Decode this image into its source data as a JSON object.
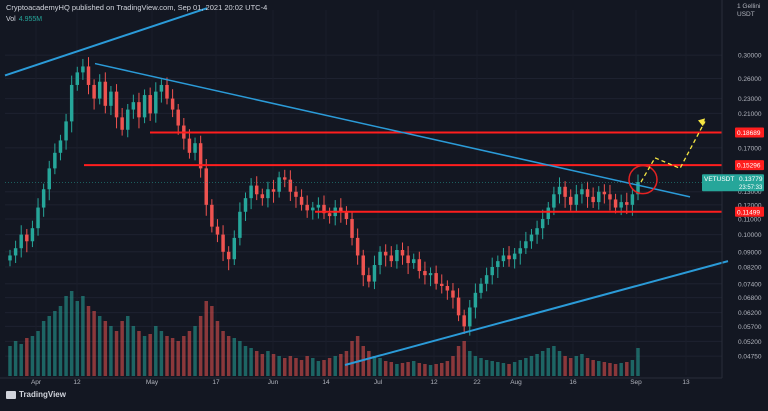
{
  "header": {
    "publisher_line": "CryptoacademyHQ published on TradingView.com, Sep 01, 2021 20:02 UTC-4",
    "volume_label": "Vol",
    "volume_value": "4.955M",
    "unit_lines": [
      "1 Gellini",
      "USDT"
    ]
  },
  "footer": {
    "brand": "TradingView"
  },
  "colors": {
    "background": "#131722",
    "up_candle": "#26a69a",
    "down_candle": "#ef5350",
    "resistance_line": "#ff1e1e",
    "trend_line": "#2b9bd8",
    "projection": "#f5e642",
    "circle": "#e52222",
    "current_price_tag": "#26a69a"
  },
  "chart_data": {
    "type": "candlestick",
    "symbol": "VETUSDT",
    "scale": "log",
    "y_ticks": [
      "0.30000",
      "0.26000",
      "0.23000",
      "0.21000",
      "0.17000",
      "0.13000",
      "0.12000",
      "0.11000",
      "0.10000",
      "0.09000",
      "0.08200",
      "0.07400",
      "0.06800",
      "0.06200",
      "0.05700",
      "0.05200",
      "0.04750"
    ],
    "x_ticks": [
      "Apr",
      "12",
      "May",
      "17",
      "Jun",
      "14",
      "Jul",
      "12",
      "22",
      "Aug",
      "16",
      "Sep",
      "13"
    ],
    "ylim": [
      0.045,
      0.35
    ],
    "price_tags": [
      {
        "value": 0.18689,
        "label": "0.18689",
        "kind": "resistance"
      },
      {
        "value": 0.15296,
        "label": "0.15296",
        "kind": "resistance"
      },
      {
        "value": 0.11499,
        "label": "0.11499",
        "kind": "support"
      },
      {
        "value": 0.13779,
        "label": "0.13779",
        "kind": "current",
        "symbol": "VETUSDT",
        "countdown": "23:57:33"
      }
    ],
    "closes": [
      0.088,
      0.092,
      0.1,
      0.096,
      0.104,
      0.118,
      0.132,
      0.15,
      0.165,
      0.178,
      0.2,
      0.25,
      0.27,
      0.28,
      0.25,
      0.23,
      0.255,
      0.22,
      0.24,
      0.205,
      0.19,
      0.215,
      0.225,
      0.205,
      0.235,
      0.21,
      0.24,
      0.25,
      0.23,
      0.215,
      0.195,
      0.18,
      0.165,
      0.175,
      0.15,
      0.12,
      0.105,
      0.1,
      0.09,
      0.086,
      0.098,
      0.115,
      0.125,
      0.135,
      0.128,
      0.125,
      0.132,
      0.13,
      0.142,
      0.14,
      0.13,
      0.126,
      0.12,
      0.116,
      0.118,
      0.12,
      0.114,
      0.112,
      0.118,
      0.115,
      0.11,
      0.098,
      0.088,
      0.078,
      0.075,
      0.083,
      0.09,
      0.088,
      0.085,
      0.091,
      0.088,
      0.084,
      0.086,
      0.08,
      0.078,
      0.079,
      0.074,
      0.073,
      0.071,
      0.068,
      0.061,
      0.057,
      0.064,
      0.07,
      0.074,
      0.078,
      0.082,
      0.085,
      0.088,
      0.086,
      0.089,
      0.092,
      0.096,
      0.1,
      0.104,
      0.11,
      0.118,
      0.128,
      0.134,
      0.126,
      0.12,
      0.128,
      0.132,
      0.126,
      0.122,
      0.13,
      0.128,
      0.124,
      0.118,
      0.122,
      0.12,
      0.128,
      0.138
    ],
    "volumes": [
      0.3,
      0.35,
      0.32,
      0.38,
      0.4,
      0.45,
      0.55,
      0.6,
      0.65,
      0.7,
      0.8,
      0.85,
      0.75,
      0.8,
      0.7,
      0.65,
      0.6,
      0.55,
      0.5,
      0.45,
      0.55,
      0.6,
      0.5,
      0.45,
      0.4,
      0.42,
      0.5,
      0.45,
      0.4,
      0.38,
      0.35,
      0.4,
      0.45,
      0.5,
      0.6,
      0.75,
      0.7,
      0.55,
      0.45,
      0.4,
      0.38,
      0.35,
      0.3,
      0.28,
      0.25,
      0.22,
      0.25,
      0.22,
      0.2,
      0.18,
      0.2,
      0.18,
      0.16,
      0.2,
      0.18,
      0.15,
      0.16,
      0.18,
      0.2,
      0.22,
      0.25,
      0.35,
      0.4,
      0.3,
      0.25,
      0.2,
      0.18,
      0.15,
      0.14,
      0.12,
      0.13,
      0.14,
      0.15,
      0.13,
      0.12,
      0.11,
      0.12,
      0.13,
      0.15,
      0.2,
      0.3,
      0.35,
      0.25,
      0.2,
      0.18,
      0.16,
      0.15,
      0.14,
      0.13,
      0.12,
      0.14,
      0.16,
      0.18,
      0.2,
      0.22,
      0.25,
      0.28,
      0.3,
      0.25,
      0.2,
      0.18,
      0.2,
      0.22,
      0.18,
      0.16,
      0.15,
      0.14,
      0.13,
      0.12,
      0.13,
      0.14,
      0.16,
      0.28
    ]
  }
}
